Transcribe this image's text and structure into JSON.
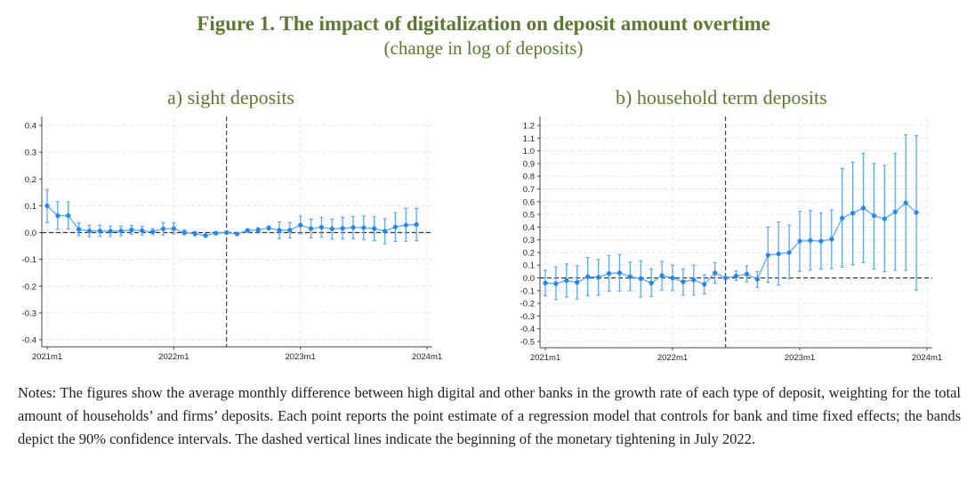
{
  "title": "Figure 1. The impact of digitalization on deposit amount overtime",
  "subtitle": "(change in log of deposits)",
  "notes": "Notes: The figures show the average monthly difference between high digital and other banks in the growth rate of each type of deposit, weighting for the total amount of households’ and firms’ deposits. Each point reports the point estimate of a regression model that controls for bank and time fixed effects; the bands depict the 90% confidence intervals. The dashed vertical lines indicate the beginning of the monetary tightening in July 2022.",
  "colors": {
    "series": "#1e87ff",
    "ci": "#5aa8ff",
    "title": "#5b7a2b"
  },
  "chart_data": [
    {
      "type": "line",
      "title": "a) sight deposits",
      "xlabel": "",
      "ylabel": "",
      "x_ticks": [
        "2021m1",
        "2022m1",
        "2023m1",
        "2024m1"
      ],
      "y_ticks": [
        "0.4",
        "0.3",
        "0.2",
        "0.1",
        "0.0",
        "-0.1",
        "-0.2",
        "-0.3",
        "-0.4"
      ],
      "ylim": [
        -0.4,
        0.4
      ],
      "x_start": "2021m1",
      "x_end": "2023m12",
      "vline_index": 17,
      "hline": 0,
      "grid": true,
      "series": [
        {
          "name": "point estimate",
          "values": [
            0.1,
            0.063,
            0.063,
            0.012,
            0.006,
            0.006,
            0.005,
            0.006,
            0.01,
            0.007,
            0.003,
            0.014,
            0.015,
            0.0,
            -0.004,
            -0.011,
            -0.002,
            0.0,
            -0.005,
            0.008,
            0.01,
            0.017,
            0.009,
            0.009,
            0.028,
            0.015,
            0.02,
            0.014,
            0.016,
            0.019,
            0.018,
            0.015,
            0.005,
            0.021,
            0.028,
            0.03
          ],
          "lower": [
            0.037,
            0.012,
            0.013,
            -0.012,
            -0.015,
            -0.014,
            -0.014,
            -0.012,
            -0.007,
            -0.009,
            -0.008,
            -0.009,
            -0.005,
            -0.008,
            -0.012,
            -0.017,
            -0.008,
            0.0,
            -0.008,
            0.001,
            0.003,
            0.01,
            -0.022,
            -0.02,
            -0.005,
            -0.02,
            -0.017,
            -0.024,
            -0.023,
            -0.023,
            -0.026,
            -0.03,
            -0.042,
            -0.033,
            -0.033,
            -0.03
          ],
          "upper": [
            0.16,
            0.115,
            0.114,
            0.036,
            0.027,
            0.027,
            0.024,
            0.024,
            0.027,
            0.023,
            0.015,
            0.037,
            0.036,
            0.01,
            0.004,
            -0.005,
            0.003,
            0.0,
            -0.002,
            0.014,
            0.018,
            0.024,
            0.04,
            0.037,
            0.062,
            0.05,
            0.057,
            0.05,
            0.057,
            0.06,
            0.062,
            0.059,
            0.052,
            0.074,
            0.09,
            0.09
          ]
        }
      ]
    },
    {
      "type": "line",
      "title": "b) household term deposits",
      "xlabel": "",
      "ylabel": "",
      "x_ticks": [
        "2021m1",
        "2022m1",
        "2023m1",
        "2024m1"
      ],
      "y_ticks": [
        "1.2",
        "1.1",
        "1.0",
        "0.9",
        "0.8",
        "0.7",
        "0.6",
        "0.5",
        "0.4",
        "0.3",
        "0.2",
        "0.1",
        "0.0",
        "-0.1",
        "-0.2",
        "-0.3",
        "-0.4",
        "-0.5"
      ],
      "ylim": [
        -0.5,
        1.2
      ],
      "x_start": "2021m1",
      "x_end": "2023m12",
      "vline_index": 17,
      "hline": 0,
      "grid": true,
      "series": [
        {
          "name": "point estimate",
          "values": [
            -0.04,
            -0.045,
            -0.02,
            -0.035,
            0.01,
            0.005,
            0.035,
            0.04,
            0.01,
            -0.005,
            -0.04,
            0.02,
            0.0,
            -0.03,
            -0.015,
            -0.05,
            0.04,
            0.0,
            0.015,
            0.03,
            -0.01,
            0.18,
            0.19,
            0.2,
            0.29,
            0.295,
            0.29,
            0.305,
            0.47,
            0.51,
            0.55,
            0.49,
            0.465,
            0.52,
            0.59,
            0.515
          ],
          "lower": [
            -0.14,
            -0.17,
            -0.15,
            -0.165,
            -0.14,
            -0.135,
            -0.105,
            -0.105,
            -0.1,
            -0.15,
            -0.145,
            -0.095,
            -0.1,
            -0.135,
            -0.135,
            -0.125,
            -0.04,
            0.0,
            -0.02,
            -0.03,
            -0.075,
            -0.035,
            -0.055,
            -0.005,
            0.05,
            0.06,
            0.07,
            0.075,
            0.085,
            0.105,
            0.12,
            0.07,
            0.05,
            0.06,
            0.06,
            -0.095
          ],
          "upper": [
            0.06,
            0.085,
            0.11,
            0.095,
            0.16,
            0.145,
            0.175,
            0.185,
            0.125,
            0.135,
            0.07,
            0.13,
            0.1,
            0.07,
            0.1,
            0.025,
            0.12,
            0.0,
            0.055,
            0.095,
            0.05,
            0.4,
            0.44,
            0.415,
            0.525,
            0.53,
            0.51,
            0.535,
            0.86,
            0.91,
            0.98,
            0.9,
            0.885,
            0.98,
            1.125,
            1.12
          ]
        }
      ]
    }
  ]
}
